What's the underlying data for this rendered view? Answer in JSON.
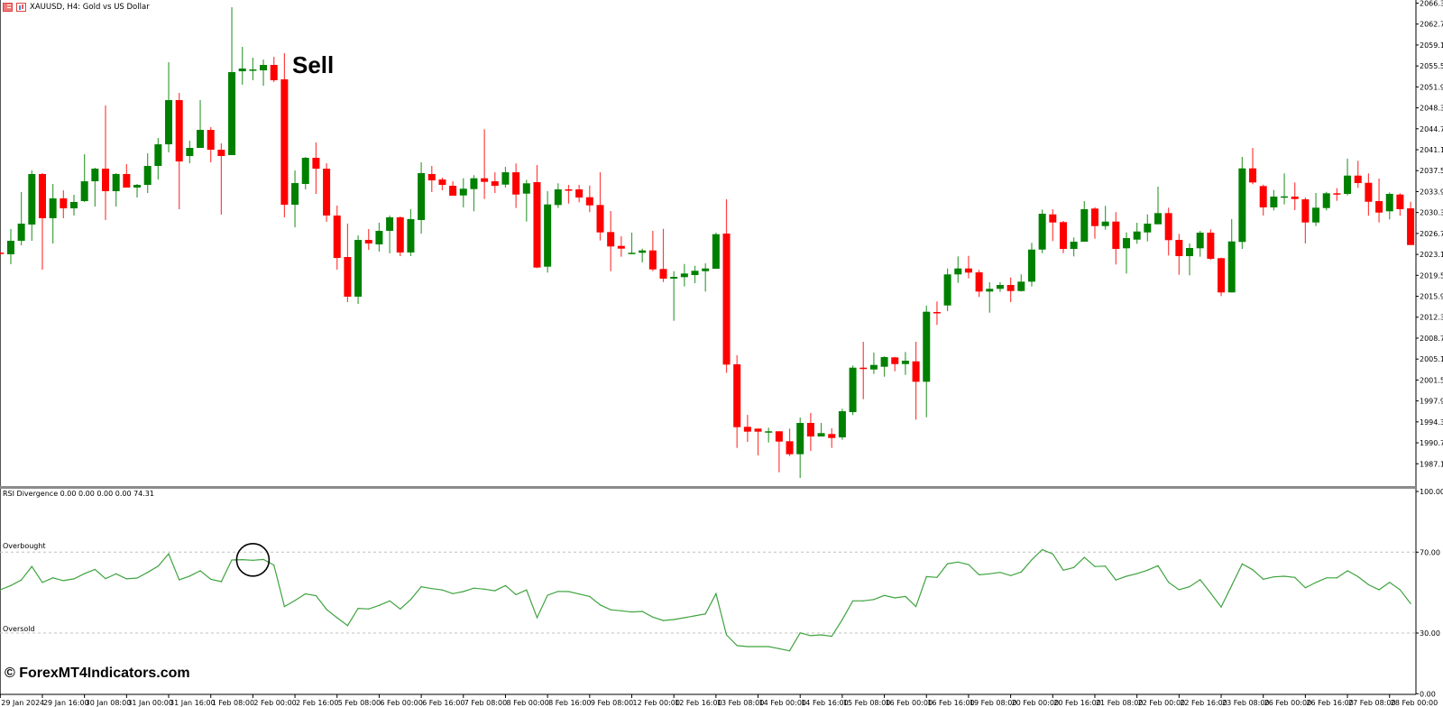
{
  "header": {
    "symbol_title": "XAUUSD, H4:  Gold vs US Dollar",
    "icons": [
      "list-icon",
      "chart-icon"
    ]
  },
  "indicator": {
    "label": "RSI Divergence 0.00 0.00 0.00 0.00 74.31",
    "overbought_label": "Overbought",
    "oversold_label": "Oversold"
  },
  "annotation": {
    "sell_label": "Sell"
  },
  "watermark": "© ForexMT4Indicators.com",
  "colors": {
    "bull": "#008000",
    "bear": "#ff0000",
    "rsi_line": "#3fa33f",
    "level_line": "#c0c0c0",
    "separator": "#8c8c8c"
  },
  "chart_data": [
    {
      "type": "candlestick",
      "title": "XAUUSD, H4:  Gold vs US Dollar",
      "ylim": [
        1984.3,
        2066.9
      ],
      "grid": false,
      "price_ticks": [
        "2066.30",
        "2062.70",
        "2059.10",
        "2055.50",
        "2051.90",
        "2048.30",
        "2044.70",
        "2041.10",
        "2037.50",
        "2033.90",
        "2030.30",
        "2026.70",
        "2023.10",
        "2019.50",
        "2015.90",
        "2012.30",
        "2008.70",
        "2005.10",
        "2001.50",
        "1997.90",
        "1994.30",
        "1990.70",
        "1987.10"
      ],
      "time_labels": [
        "29 Jan 2024",
        "29 Jan 16:00",
        "30 Jan 08:00",
        "31 Jan 00:00",
        "31 Jan 16:00",
        "1 Feb 08:00",
        "2 Feb 00:00",
        "2 Feb 16:00",
        "5 Feb 08:00",
        "6 Feb 00:00",
        "6 Feb 16:00",
        "7 Feb 08:00",
        "8 Feb 00:00",
        "8 Feb 16:00",
        "9 Feb 08:00",
        "12 Feb 00:00",
        "12 Feb 16:00",
        "13 Feb 08:00",
        "14 Feb 00:00",
        "14 Feb 16:00",
        "15 Feb 08:00",
        "16 Feb 00:00",
        "16 Feb 16:00",
        "19 Feb 08:00",
        "20 Feb 00:00",
        "20 Feb 16:00",
        "21 Feb 08:00",
        "22 Feb 00:00",
        "22 Feb 16:00",
        "23 Feb 08:00",
        "26 Feb 00:00",
        "26 Feb 16:00",
        "27 Feb 08:00",
        "28 Feb 00:00"
      ],
      "ohlc_fields": [
        "open",
        "high",
        "low",
        "close"
      ],
      "ohlc": [
        [
          2023.4,
          2023.5,
          2023.1,
          2023.2
        ],
        [
          2023.12,
          2027.46,
          2021.41,
          2025.44
        ],
        [
          2025.44,
          2033.81,
          2024.66,
          2028.39
        ],
        [
          2028.23,
          2037.54,
          2025.44,
          2036.92
        ],
        [
          2036.92,
          2037.07,
          2020.48,
          2029.32
        ],
        [
          2029.32,
          2035.21,
          2024.98,
          2032.73
        ],
        [
          2032.73,
          2034.12,
          2029.32,
          2031.02
        ],
        [
          2031.02,
          2033.35,
          2029.78,
          2032.11
        ],
        [
          2032.26,
          2040.32,
          2032.11,
          2035.67
        ],
        [
          2035.67,
          2038.0,
          2031.33,
          2037.84
        ],
        [
          2037.84,
          2048.7,
          2029.01,
          2033.97
        ],
        [
          2033.97,
          2037.07,
          2031.33,
          2036.92
        ],
        [
          2036.92,
          2038.62,
          2034.59,
          2034.59
        ],
        [
          2034.59,
          2035.21,
          2032.88,
          2035.05
        ],
        [
          2035.05,
          2040.48,
          2033.66,
          2038.31
        ],
        [
          2038.31,
          2043.12,
          2035.98,
          2042.03
        ],
        [
          2042.03,
          2056.14,
          2040.64,
          2049.63
        ],
        [
          2049.63,
          2050.87,
          2030.87,
          2039.08
        ],
        [
          2040.02,
          2042.65,
          2038.78,
          2041.41
        ],
        [
          2041.41,
          2049.63,
          2041.41,
          2044.51
        ],
        [
          2044.51,
          2044.98,
          2038.93,
          2041.1
        ],
        [
          2041.1,
          2042.19,
          2029.94,
          2040.02
        ],
        [
          2040.17,
          2065.6,
          2040.17,
          2054.44
        ],
        [
          2054.59,
          2058.78,
          2052.27,
          2055.06
        ],
        [
          2054.75,
          2056.92,
          2053.04,
          2054.9
        ],
        [
          2054.75,
          2056.61,
          2052.11,
          2055.68
        ],
        [
          2055.68,
          2057.07,
          2052.73,
          2053.04
        ],
        [
          2053.2,
          2057.69,
          2029.47,
          2031.64
        ],
        [
          2031.64,
          2037.54,
          2027.77,
          2035.36
        ],
        [
          2035.21,
          2039.86,
          2034.28,
          2039.71
        ],
        [
          2039.71,
          2042.34,
          2033.5,
          2037.84
        ],
        [
          2037.84,
          2038.78,
          2028.7,
          2029.78
        ],
        [
          2029.78,
          2031.49,
          2020.48,
          2022.49
        ],
        [
          2022.65,
          2028.39,
          2014.9,
          2015.83
        ],
        [
          2015.83,
          2026.37,
          2014.59,
          2025.59
        ],
        [
          2025.59,
          2027.46,
          2023.89,
          2024.98
        ],
        [
          2024.82,
          2028.54,
          2023.58,
          2027.15
        ],
        [
          2027.15,
          2029.78,
          2023.27,
          2029.47
        ],
        [
          2029.47,
          2029.63,
          2022.8,
          2023.43
        ],
        [
          2023.43,
          2030.87,
          2022.8,
          2029.16
        ],
        [
          2029.01,
          2038.93,
          2026.68,
          2037.07
        ],
        [
          2036.92,
          2038.31,
          2033.81,
          2035.83
        ],
        [
          2035.98,
          2036.29,
          2034.12,
          2035.05
        ],
        [
          2034.9,
          2035.67,
          2033.19,
          2033.19
        ],
        [
          2033.24,
          2036.19,
          2031.18,
          2034.39
        ],
        [
          2034.33,
          2036.72,
          2030.51,
          2036.19
        ],
        [
          2036.19,
          2044.62,
          2032.62,
          2035.57
        ],
        [
          2035.67,
          2037.22,
          2033.66,
          2034.9
        ],
        [
          2035.1,
          2038.16,
          2034.59,
          2037.22
        ],
        [
          2037.22,
          2038.73,
          2031.07,
          2033.39
        ],
        [
          2033.55,
          2035.94,
          2028.74,
          2035.32
        ],
        [
          2035.52,
          2038.46,
          2020.74,
          2020.84
        ],
        [
          2020.99,
          2033.97,
          2019.97,
          2031.69
        ],
        [
          2031.59,
          2035.32,
          2031.07,
          2034.28
        ],
        [
          2034.28,
          2035.05,
          2031.84,
          2034.12
        ],
        [
          2034.28,
          2035.05,
          2032.06,
          2032.88
        ],
        [
          2032.93,
          2034.95,
          2030.36,
          2031.53
        ],
        [
          2031.59,
          2037.22,
          2025.49,
          2026.88
        ],
        [
          2026.94,
          2030.56,
          2020.21,
          2024.46
        ],
        [
          2024.56,
          2026.22,
          2022.7,
          2024.09
        ],
        [
          2023.16,
          2026.84,
          2023.16,
          2023.38
        ],
        [
          2023.38,
          2024.09,
          2021.72,
          2023.78
        ],
        [
          2023.78,
          2027.15,
          2020.21,
          2020.52
        ],
        [
          2020.59,
          2027.5,
          2018.35,
          2018.93
        ],
        [
          2018.93,
          2020.21,
          2011.69,
          2019.24
        ],
        [
          2019.19,
          2021.45,
          2017.58,
          2019.81
        ],
        [
          2019.55,
          2021.14,
          2018.15,
          2020.28
        ],
        [
          2020.21,
          2021.56,
          2016.71,
          2020.68
        ],
        [
          2020.63,
          2026.84,
          2020.63,
          2026.57
        ],
        [
          2026.68,
          2032.57,
          2002.75,
          2004.15
        ],
        [
          2004.2,
          2005.75,
          1989.82,
          1993.39
        ],
        [
          1993.45,
          1995.51,
          1990.86,
          1992.62
        ],
        [
          1993.14,
          1993.14,
          1988.54,
          1992.62
        ],
        [
          1992.57,
          1993.3,
          1990.75,
          1992.68
        ],
        [
          1992.68,
          1992.68,
          1985.64,
          1990.91
        ],
        [
          1990.97,
          1993.14,
          1988.43,
          1988.74
        ],
        [
          1988.74,
          1995.05,
          1984.66,
          1994.12
        ],
        [
          1994.12,
          1995.82,
          1989.31,
          1991.79
        ],
        [
          1991.79,
          1994.12,
          1991.79,
          1992.37
        ],
        [
          1992.21,
          1993.19,
          1989.82,
          1991.53
        ],
        [
          1991.64,
          1996.55,
          1991.22,
          1996.13
        ],
        [
          1995.98,
          2003.99,
          1995.47,
          2003.62
        ],
        [
          2003.62,
          2008.07,
          1998.2,
          2003.47
        ],
        [
          2003.31,
          2006.21,
          2002.54,
          2004.09
        ],
        [
          2003.78,
          2005.59,
          2002.07,
          2005.44
        ],
        [
          2005.39,
          2005.48,
          2003.0,
          2004.24
        ],
        [
          2004.24,
          2006.32,
          2002.38,
          2004.82
        ],
        [
          2004.71,
          2008.07,
          1994.69,
          2001.2
        ],
        [
          2001.2,
          2014.28,
          1995.09,
          2013.24
        ],
        [
          2013.19,
          2015.0,
          2010.97,
          2012.99
        ],
        [
          2014.32,
          2020.68,
          2013.35,
          2019.66
        ],
        [
          2019.66,
          2022.76,
          2018.2,
          2020.68
        ],
        [
          2020.68,
          2022.85,
          2018.98,
          2019.97
        ],
        [
          2020.01,
          2020.43,
          2015.78,
          2016.71
        ],
        [
          2016.71,
          2018.31,
          2013.08,
          2017.18
        ],
        [
          2017.18,
          2018.31,
          2016.65,
          2017.84
        ],
        [
          2017.84,
          2019.13,
          2014.9,
          2016.8
        ],
        [
          2016.8,
          2019.66,
          2016.71,
          2018.41
        ],
        [
          2018.41,
          2025.08,
          2017.58,
          2023.93
        ],
        [
          2023.93,
          2030.82,
          2023.31,
          2030.09
        ],
        [
          2029.98,
          2030.87,
          2025.39,
          2028.59
        ],
        [
          2028.65,
          2028.85,
          2023.31,
          2024.04
        ],
        [
          2024.04,
          2026.01,
          2022.76,
          2025.28
        ],
        [
          2025.28,
          2032.26,
          2025.28,
          2030.87
        ],
        [
          2030.98,
          2031.22,
          2025.8,
          2027.97
        ],
        [
          2027.97,
          2031.44,
          2027.35,
          2028.74
        ],
        [
          2028.74,
          2030.36,
          2021.36,
          2024.04
        ],
        [
          2024.15,
          2026.88,
          2019.81,
          2025.9
        ],
        [
          2025.64,
          2028.54,
          2024.93,
          2027.04
        ],
        [
          2026.88,
          2029.98,
          2025.33,
          2028.39
        ],
        [
          2028.28,
          2034.74,
          2028.28,
          2030.2
        ],
        [
          2030.2,
          2031.13,
          2022.91,
          2025.55
        ],
        [
          2025.59,
          2026.63,
          2019.59,
          2022.8
        ],
        [
          2022.8,
          2024.98,
          2019.5,
          2024.2
        ],
        [
          2024.15,
          2027.15,
          2022.7,
          2026.84
        ],
        [
          2026.84,
          2027.41,
          2022.14,
          2022.34
        ],
        [
          2022.45,
          2022.54,
          2015.93,
          2016.56
        ],
        [
          2016.56,
          2029.16,
          2016.56,
          2025.33
        ],
        [
          2025.24,
          2039.86,
          2024.04,
          2037.89
        ],
        [
          2037.89,
          2041.41,
          2035.16,
          2035.47
        ],
        [
          2034.85,
          2035.1,
          2029.78,
          2031.18
        ],
        [
          2031.18,
          2034.17,
          2030.66,
          2033.04
        ],
        [
          2032.99,
          2037.02,
          2031.69,
          2033.08
        ],
        [
          2033.04,
          2035.47,
          2030.71,
          2032.62
        ],
        [
          2032.57,
          2032.88,
          2024.98,
          2028.59
        ],
        [
          2028.59,
          2033.66,
          2027.97,
          2031.13
        ],
        [
          2031.07,
          2033.86,
          2030.66,
          2033.61
        ],
        [
          2033.61,
          2034.48,
          2032.31,
          2033.5
        ],
        [
          2033.5,
          2039.55,
          2033.24,
          2036.65
        ],
        [
          2036.65,
          2039.19,
          2034.54,
          2035.36
        ],
        [
          2035.41,
          2037.02,
          2029.74,
          2032.15
        ],
        [
          2032.26,
          2036.14,
          2028.59,
          2030.29
        ],
        [
          2030.51,
          2033.77,
          2029.12,
          2033.5
        ],
        [
          2033.39,
          2033.61,
          2029.74,
          2030.87
        ],
        [
          2031.02,
          2032.15,
          2024.71,
          2024.71
        ]
      ]
    },
    {
      "type": "line",
      "title": "RSI Divergence 0.00 0.00 0.00 0.00 74.31",
      "ylim": [
        0,
        100
      ],
      "y_ticks": [
        "100.00",
        "70.00",
        "30.00",
        "0.00"
      ],
      "levels": [
        {
          "label": "Overbought",
          "value": 70
        },
        {
          "label": "Oversold",
          "value": 30
        }
      ],
      "values": [
        51.4,
        53.5,
        56.2,
        62.9,
        55.0,
        57.3,
        55.9,
        56.8,
        59.4,
        61.5,
        56.9,
        59.3,
        56.8,
        57.2,
        60.0,
        63.1,
        69.2,
        56.3,
        58.2,
        60.8,
        56.6,
        55.4,
        66.1,
        66.3,
        66.0,
        66.4,
        63.6,
        43.1,
        46.1,
        49.4,
        48.5,
        41.7,
        37.6,
        33.7,
        42.2,
        41.9,
        43.7,
        45.9,
        41.9,
        46.6,
        52.9,
        52.0,
        51.3,
        49.5,
        50.5,
        52.2,
        51.7,
        50.9,
        53.5,
        49.0,
        51.3,
        37.6,
        48.7,
        50.6,
        50.5,
        49.3,
        48.1,
        43.9,
        41.5,
        41.0,
        40.4,
        40.7,
        37.9,
        36.2,
        36.7,
        37.6,
        38.5,
        39.5,
        49.5,
        29.1,
        23.8,
        23.3,
        23.3,
        23.3,
        22.3,
        21.2,
        30.1,
        28.7,
        29.1,
        28.4,
        36.6,
        45.9,
        45.9,
        46.6,
        48.6,
        47.4,
        48.1,
        43.1,
        57.9,
        57.5,
        64.3,
        65.1,
        63.9,
        58.8,
        59.3,
        60.0,
        58.4,
        60.2,
        66.2,
        71.3,
        69.1,
        61.1,
        62.4,
        67.4,
        62.9,
        63.1,
        56.2,
        58.1,
        59.4,
        61.1,
        63.3,
        55.1,
        51.4,
        52.9,
        56.4,
        49.8,
        42.9,
        53.5,
        64.2,
        61.3,
        56.6,
        57.8,
        58.1,
        57.5,
        52.4,
        55.0,
        57.3,
        57.3,
        60.8,
        57.9,
        53.9,
        51.4,
        55.1,
        51.4,
        44.6
      ],
      "grid": false
    }
  ]
}
